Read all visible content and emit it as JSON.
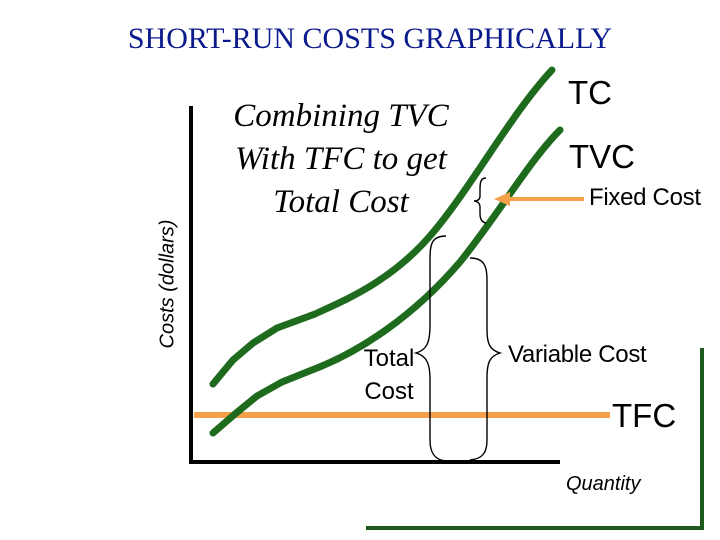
{
  "title": "SHORT-RUN COSTS GRAPHICALLY",
  "caption": [
    "Combining TVC",
    "With TFC to get",
    "Total Cost"
  ],
  "axes": {
    "y_label": "Costs (dollars)",
    "x_label": "Quantity"
  },
  "curve_labels": {
    "tc": "TC",
    "tvc": "TVC",
    "tfc": "TFC"
  },
  "annotations": {
    "fixed_cost": "Fixed Cost",
    "variable_cost": "Variable Cost",
    "total_cost": [
      "Total",
      "Cost"
    ]
  },
  "colors": {
    "title": "#0a1a8c",
    "curve": "#1e6b1e",
    "tfc_line": "#f5a04a",
    "axis": "#000000"
  }
}
